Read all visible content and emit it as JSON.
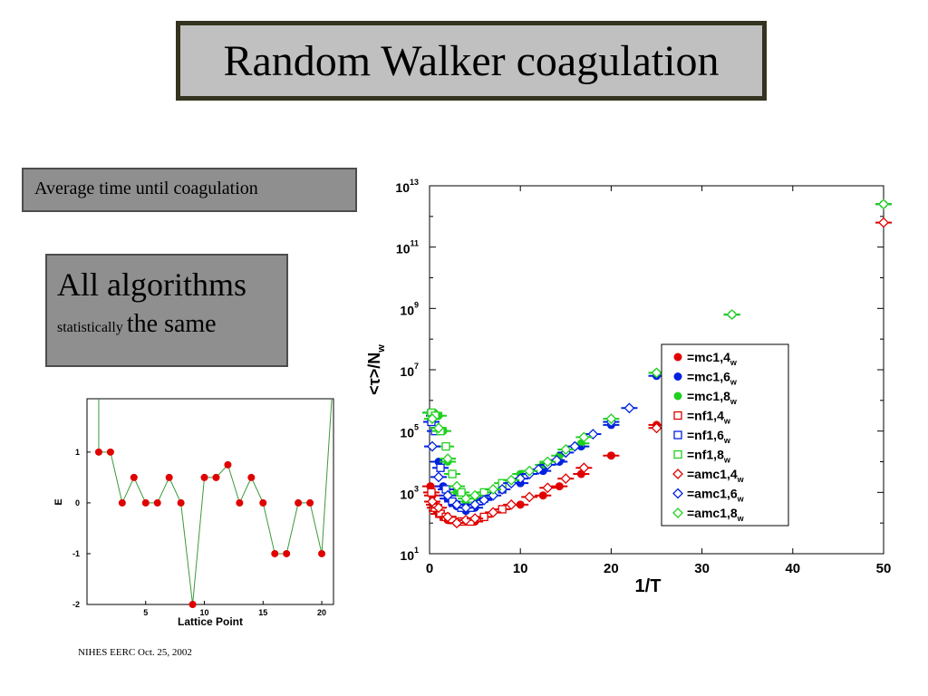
{
  "title": "Random Walker coagulation",
  "subtitle": "Average time until coagulation",
  "claim": {
    "line1": "All algorithms",
    "small": "statistically",
    "big": "the same"
  },
  "footer": "NIHES EERC Oct. 25, 2002",
  "chart_data": [
    {
      "type": "line",
      "xlabel": "Lattice Point",
      "ylabel": "E",
      "xlim": [
        0,
        21
      ],
      "ylim": [
        -2,
        2.05
      ],
      "xticks": [
        5,
        10,
        15,
        20
      ],
      "yticks": [
        -2,
        -1,
        0,
        1
      ],
      "x": [
        1,
        2,
        3,
        4,
        5,
        6,
        7,
        8,
        9,
        10,
        11,
        12,
        13,
        14,
        15,
        16,
        17,
        18,
        19,
        20
      ],
      "values": [
        1,
        1,
        0,
        0.5,
        0,
        0,
        0.5,
        0,
        -2,
        0.5,
        0.5,
        0.75,
        0,
        0.5,
        0,
        -1,
        -1,
        0,
        0,
        -1
      ],
      "line_color": "#3a9a3a",
      "marker_color": "#e00000"
    },
    {
      "type": "scatter",
      "xlabel": "1/T",
      "ylabel": "<τ>/N",
      "ylabel_sub": "w",
      "xlim": [
        0,
        50
      ],
      "ylim_exp": [
        1,
        13
      ],
      "log_y": true,
      "xticks": [
        0,
        10,
        20,
        30,
        40,
        50
      ],
      "yticks_exp": [
        1,
        3,
        5,
        7,
        9,
        11,
        13
      ],
      "legend_position": "right",
      "series": [
        {
          "name": "=mc1,4",
          "sub": "w",
          "color": "#e00000",
          "marker": "filled-circle",
          "points": [
            [
              0.1,
              3.2
            ],
            [
              0.3,
              2.9
            ],
            [
              0.5,
              2.6
            ],
            [
              0.8,
              2.4
            ],
            [
              1,
              2.3
            ],
            [
              1.5,
              2.2
            ],
            [
              2,
              2.1
            ],
            [
              3,
              2.0
            ],
            [
              4,
              2.05
            ],
            [
              5,
              2.05
            ],
            [
              10,
              2.6
            ],
            [
              12.5,
              2.9
            ],
            [
              14.3,
              3.2
            ],
            [
              16.7,
              3.6
            ],
            [
              20,
              4.2
            ],
            [
              25,
              5.2
            ]
          ]
        },
        {
          "name": "=mc1,6",
          "sub": "w",
          "color": "#0020e0",
          "marker": "filled-circle",
          "points": [
            [
              0.1,
              5.6
            ],
            [
              0.5,
              5.5
            ],
            [
              1,
              4.0
            ],
            [
              1.5,
              3.2
            ],
            [
              2,
              2.8
            ],
            [
              3,
              2.55
            ],
            [
              4,
              2.4
            ],
            [
              5,
              2.5
            ],
            [
              10,
              3.3
            ],
            [
              12.5,
              3.7
            ],
            [
              14.3,
              4.0
            ],
            [
              16.7,
              4.5
            ],
            [
              20,
              5.2
            ],
            [
              25,
              6.8
            ],
            [
              33.3,
              8.8
            ],
            [
              50,
              12.4
            ]
          ]
        },
        {
          "name": "=mc1,8",
          "sub": "w",
          "color": "#20d020",
          "marker": "filled-circle",
          "points": [
            [
              0.1,
              5.6
            ],
            [
              0.5,
              5.6
            ],
            [
              1,
              5.5
            ],
            [
              1.5,
              5.0
            ],
            [
              2,
              4.0
            ],
            [
              3,
              3.0
            ],
            [
              4,
              2.7
            ],
            [
              5,
              2.8
            ],
            [
              10,
              3.6
            ],
            [
              12.5,
              3.9
            ],
            [
              14.3,
              4.2
            ],
            [
              16.7,
              4.6
            ],
            [
              20,
              5.3
            ],
            [
              25,
              6.9
            ],
            [
              33.3,
              8.8
            ],
            [
              50,
              12.4
            ]
          ]
        },
        {
          "name": "=nf1,4",
          "sub": "w",
          "color": "#e00000",
          "marker": "open-square",
          "points": [
            [
              0.2,
              3.0
            ],
            [
              0.6,
              2.5
            ],
            [
              1.2,
              2.3
            ],
            [
              1.8,
              2.2
            ],
            [
              2.5,
              2.1
            ],
            [
              3.5,
              2.05
            ],
            [
              4.5,
              2.05
            ],
            [
              6,
              2.2
            ],
            [
              8,
              2.45
            ]
          ]
        },
        {
          "name": "=nf1,6",
          "sub": "w",
          "color": "#0020e0",
          "marker": "open-square",
          "points": [
            [
              0.2,
              5.3
            ],
            [
              0.6,
              5.0
            ],
            [
              1.2,
              3.8
            ],
            [
              1.8,
              3.1
            ],
            [
              2.5,
              2.7
            ],
            [
              3.5,
              2.5
            ],
            [
              4.5,
              2.5
            ],
            [
              6,
              2.8
            ],
            [
              8,
              3.1
            ]
          ]
        },
        {
          "name": "=nf1,8",
          "sub": "w",
          "color": "#20d020",
          "marker": "open-square",
          "points": [
            [
              0.2,
              5.6
            ],
            [
              0.6,
              5.5
            ],
            [
              1.2,
              5.0
            ],
            [
              1.8,
              4.5
            ],
            [
              2.5,
              3.6
            ],
            [
              3.5,
              3.0
            ],
            [
              4.5,
              2.8
            ],
            [
              6,
              3.0
            ],
            [
              8,
              3.3
            ]
          ]
        },
        {
          "name": "=amc1,4",
          "sub": "w",
          "color": "#e00000",
          "marker": "open-diamond",
          "points": [
            [
              0.3,
              2.7
            ],
            [
              1,
              2.5
            ],
            [
              2,
              2.2
            ],
            [
              3,
              2.0
            ],
            [
              4,
              2.1
            ],
            [
              5,
              2.15
            ],
            [
              7,
              2.35
            ],
            [
              9,
              2.6
            ],
            [
              11,
              2.85
            ],
            [
              13,
              3.15
            ],
            [
              15,
              3.45
            ],
            [
              17,
              3.8
            ],
            [
              25,
              5.1
            ],
            [
              33.3,
              7.4
            ],
            [
              50,
              11.8
            ]
          ]
        },
        {
          "name": "=amc1,6",
          "sub": "w",
          "color": "#0020e0",
          "marker": "open-diamond",
          "points": [
            [
              0.3,
              4.5
            ],
            [
              1,
              3.5
            ],
            [
              2,
              2.9
            ],
            [
              3,
              2.6
            ],
            [
              4,
              2.5
            ],
            [
              5,
              2.6
            ],
            [
              6,
              2.75
            ],
            [
              7,
              2.9
            ],
            [
              8,
              3.1
            ],
            [
              9,
              3.3
            ],
            [
              10,
              3.45
            ],
            [
              11,
              3.6
            ],
            [
              12,
              3.75
            ],
            [
              13,
              3.9
            ],
            [
              14,
              4.05
            ],
            [
              15,
              4.3
            ],
            [
              16,
              4.5
            ],
            [
              18,
              4.9
            ],
            [
              20,
              5.3
            ],
            [
              22,
              5.75
            ]
          ]
        },
        {
          "name": "=amc1,8",
          "sub": "w",
          "color": "#20d020",
          "marker": "open-diamond",
          "points": [
            [
              0.3,
              5.4
            ],
            [
              1,
              5.1
            ],
            [
              2,
              4.1
            ],
            [
              3,
              3.2
            ],
            [
              4,
              2.8
            ],
            [
              5,
              2.9
            ],
            [
              7,
              3.1
            ],
            [
              9,
              3.4
            ],
            [
              11,
              3.7
            ],
            [
              13,
              4.0
            ],
            [
              15,
              4.4
            ],
            [
              17,
              4.8
            ],
            [
              20,
              5.4
            ],
            [
              25,
              6.9
            ],
            [
              33.3,
              8.8
            ],
            [
              50,
              12.4
            ]
          ]
        }
      ]
    }
  ]
}
